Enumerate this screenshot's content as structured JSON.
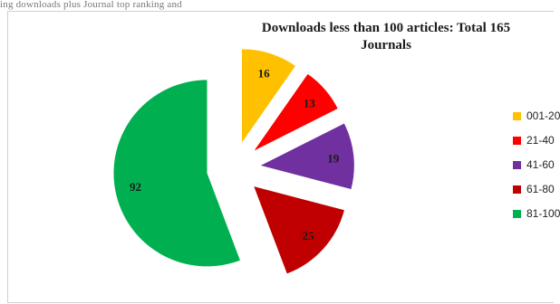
{
  "top_caption": "ing downloads plus Journal top ranking and",
  "chart_data": {
    "type": "pie",
    "title": "Downloads less than 100 articles: Total  165 Journals",
    "slices": [
      {
        "label": "001-20",
        "value": 16,
        "color": "#ffc000"
      },
      {
        "label": "21-40",
        "value": 13,
        "color": "#ff0000"
      },
      {
        "label": "41-60",
        "value": 19,
        "color": "#7030a0"
      },
      {
        "label": "61-80",
        "value": 25,
        "color": "#c00000"
      },
      {
        "label": "81-100",
        "value": 92,
        "color": "#00b050"
      }
    ],
    "exploded": true,
    "legend_position": "right",
    "start_angle_deg": 0,
    "direction": "clockwise"
  }
}
